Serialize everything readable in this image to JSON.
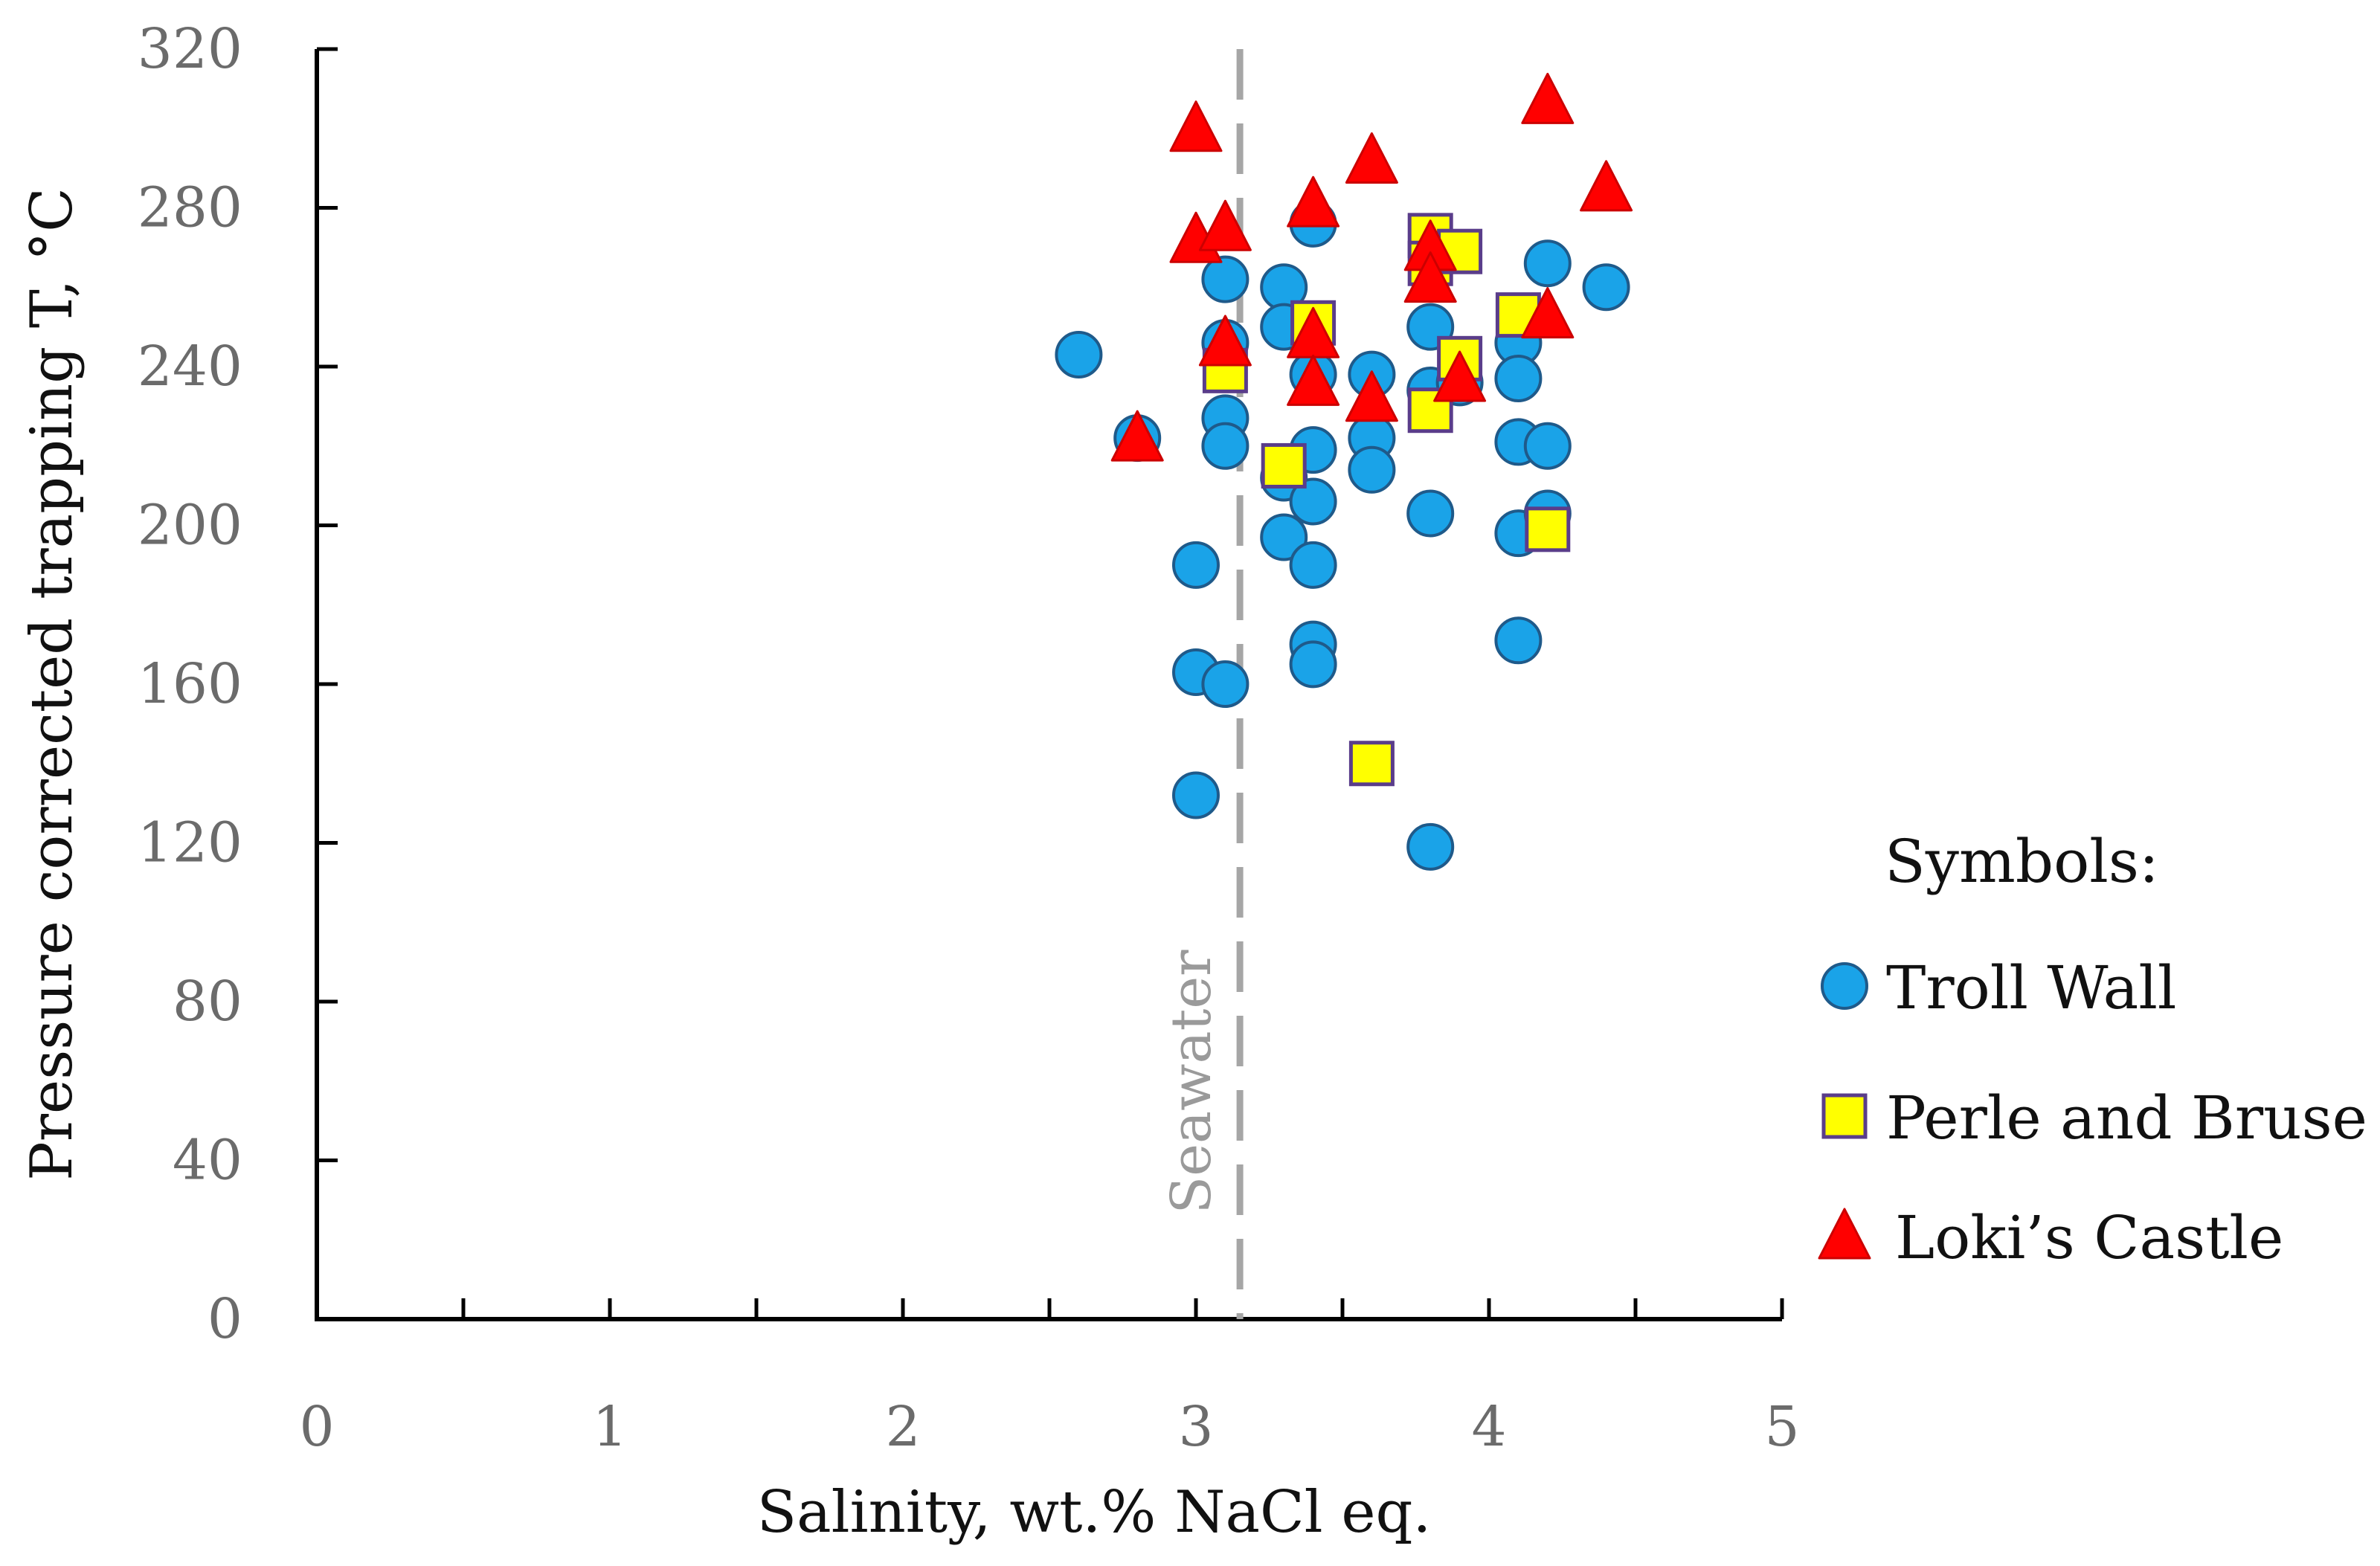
{
  "chart_data": {
    "type": "scatter",
    "xlabel": "Salinity, wt.% NaCl eq.",
    "ylabel": "Pressure corrected trapping T, °C",
    "xlim": [
      0,
      5
    ],
    "ylim": [
      0,
      320
    ],
    "x_ticks": [
      0,
      1,
      2,
      3,
      4,
      5
    ],
    "y_ticks": [
      0,
      40,
      80,
      120,
      160,
      200,
      240,
      280,
      320
    ],
    "grid": false,
    "reference_line": {
      "x": 3.15,
      "label": "Seawater",
      "color": "#a6a6a6",
      "style": "dashed"
    },
    "legend": {
      "title": "Symbols:",
      "position": "right",
      "entries": [
        {
          "label": "Troll Wall",
          "marker": "circle"
        },
        {
          "label": "Perle and Bruse",
          "marker": "square"
        },
        {
          "label": "Loki’s Castle",
          "marker": "triangle"
        }
      ]
    },
    "series": [
      {
        "name": "Troll Wall",
        "marker": "circle",
        "color": "#1aa3e8",
        "edge": "#1f5a8a",
        "points": [
          [
            2.6,
            243
          ],
          [
            2.8,
            222
          ],
          [
            3.0,
            190
          ],
          [
            3.0,
            163
          ],
          [
            3.0,
            132
          ],
          [
            3.1,
            262
          ],
          [
            3.1,
            246
          ],
          [
            3.1,
            227
          ],
          [
            3.1,
            220
          ],
          [
            3.1,
            160
          ],
          [
            3.3,
            260
          ],
          [
            3.3,
            250
          ],
          [
            3.3,
            212
          ],
          [
            3.3,
            197
          ],
          [
            3.4,
            276
          ],
          [
            3.4,
            238
          ],
          [
            3.4,
            219
          ],
          [
            3.4,
            206
          ],
          [
            3.4,
            190
          ],
          [
            3.4,
            170
          ],
          [
            3.4,
            165
          ],
          [
            3.6,
            238
          ],
          [
            3.6,
            222
          ],
          [
            3.6,
            214
          ],
          [
            3.8,
            250
          ],
          [
            3.8,
            234
          ],
          [
            3.8,
            203
          ],
          [
            3.8,
            119
          ],
          [
            3.9,
            236
          ],
          [
            4.1,
            246
          ],
          [
            4.1,
            237
          ],
          [
            4.1,
            221
          ],
          [
            4.1,
            198
          ],
          [
            4.1,
            171
          ],
          [
            4.2,
            266
          ],
          [
            4.2,
            220
          ],
          [
            4.2,
            203
          ],
          [
            4.4,
            260
          ]
        ]
      },
      {
        "name": "Perle and Bruse",
        "marker": "square",
        "color": "#ffff00",
        "edge": "#5a3d8a",
        "points": [
          [
            3.1,
            239
          ],
          [
            3.3,
            215
          ],
          [
            3.4,
            251
          ],
          [
            3.6,
            140
          ],
          [
            3.8,
            273
          ],
          [
            3.8,
            266
          ],
          [
            3.8,
            229
          ],
          [
            3.9,
            269
          ],
          [
            3.9,
            242
          ],
          [
            4.1,
            253
          ],
          [
            4.2,
            199
          ]
        ]
      },
      {
        "name": "Loki’s Castle",
        "marker": "triangle",
        "color": "#ff0000",
        "edge": "#cc0000",
        "points": [
          [
            2.8,
            222
          ],
          [
            3.0,
            300
          ],
          [
            3.0,
            272
          ],
          [
            3.1,
            275
          ],
          [
            3.1,
            246
          ],
          [
            3.4,
            281
          ],
          [
            3.4,
            248
          ],
          [
            3.4,
            236
          ],
          [
            3.6,
            292
          ],
          [
            3.6,
            232
          ],
          [
            3.8,
            270
          ],
          [
            3.8,
            262
          ],
          [
            3.9,
            237
          ],
          [
            4.2,
            307
          ],
          [
            4.2,
            253
          ],
          [
            4.4,
            285
          ]
        ]
      }
    ]
  }
}
